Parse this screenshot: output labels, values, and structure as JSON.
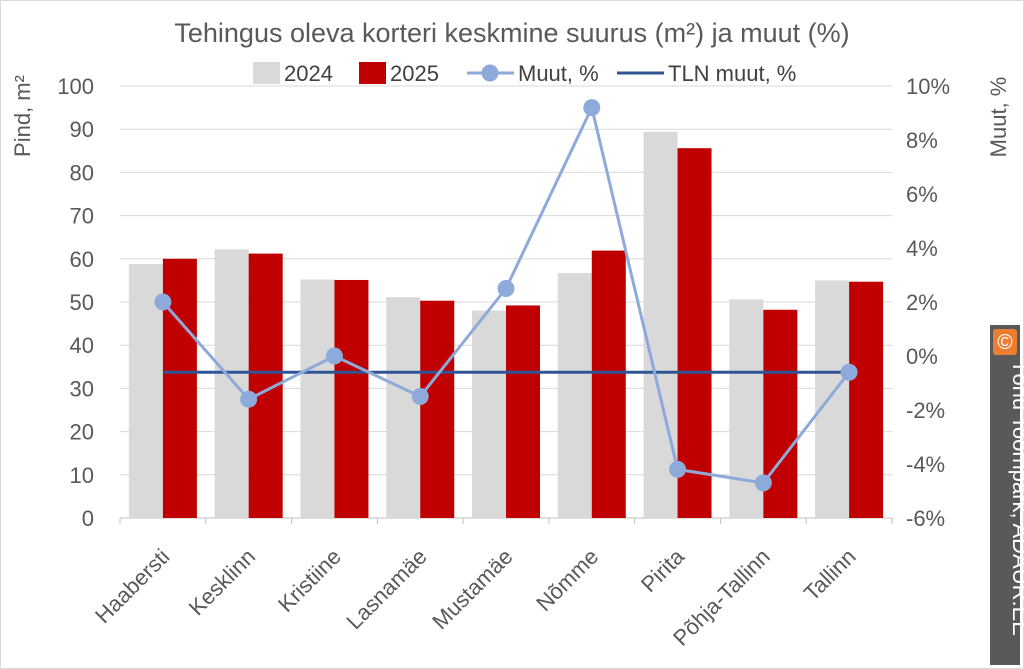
{
  "chart_data": {
    "type": "bar",
    "title": "Tehingus oleva korteri keskmine suurus (m²) ja muut (%)",
    "ylabel": "Pind, m²",
    "y2label": "Muut, %",
    "ylim": [
      0,
      100
    ],
    "yticks": [
      0,
      10,
      20,
      30,
      40,
      50,
      60,
      70,
      80,
      90,
      100
    ],
    "y2lim": [
      -6,
      10
    ],
    "y2ticks": [
      "-6%",
      "-4%",
      "-2%",
      "0%",
      "2%",
      "4%",
      "6%",
      "8%",
      "10%"
    ],
    "y2tick_values": [
      -6,
      -4,
      -2,
      0,
      2,
      4,
      6,
      8,
      10
    ],
    "categories": [
      "Haabersti",
      "Kesklinn",
      "Kristiine",
      "Lasnamäe",
      "Mustamäe",
      "Nõmme",
      "Pirita",
      "Põhja-Tallinn",
      "Tallinn"
    ],
    "series": [
      {
        "name": "2024",
        "kind": "bar",
        "axis": "left",
        "color": "#d9d9d9",
        "values": [
          58.8,
          62.2,
          55.2,
          51.1,
          48.0,
          56.7,
          89.4,
          50.6,
          55.0
        ]
      },
      {
        "name": "2025",
        "kind": "bar",
        "axis": "left",
        "color": "#c00000",
        "values": [
          60.0,
          61.2,
          55.1,
          50.3,
          49.2,
          61.9,
          85.6,
          48.2,
          54.7
        ]
      },
      {
        "name": "Muut, %",
        "kind": "line-markers",
        "axis": "right",
        "color": "#8eaadb",
        "values": [
          2.0,
          -1.6,
          0.0,
          -1.5,
          2.5,
          9.2,
          -4.2,
          -4.7,
          -0.6
        ]
      },
      {
        "name": "TLN muut, %",
        "kind": "line",
        "axis": "right",
        "color": "#2f5597",
        "values": [
          -0.6,
          -0.6,
          -0.6,
          -0.6,
          -0.6,
          -0.6,
          -0.6,
          -0.6,
          -0.6
        ]
      }
    ],
    "legend_position": "top",
    "grid": true
  },
  "watermark": {
    "icon": "copyright-icon",
    "symbol": "©",
    "text": "Tõnu Toompark, ADAUR.EE",
    "icon_color": "#ed7d31",
    "bg_color": "#595959"
  }
}
